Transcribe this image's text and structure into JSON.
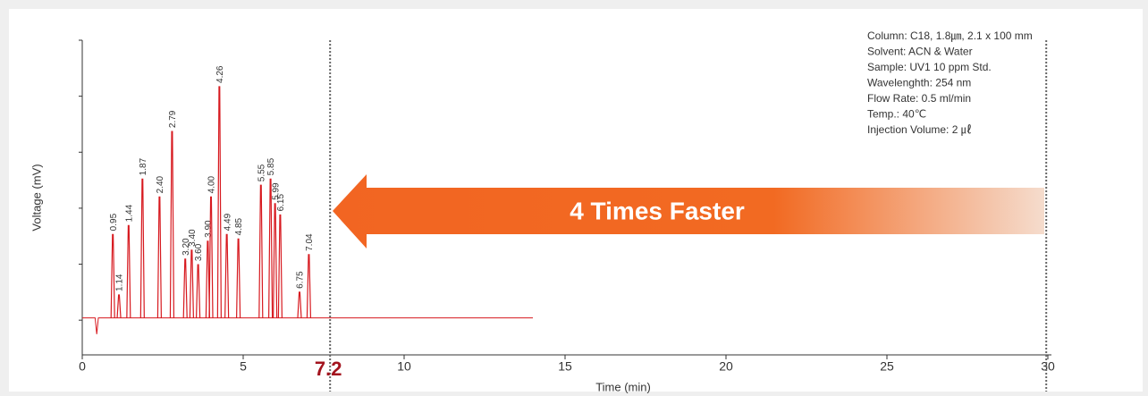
{
  "chart_data": {
    "type": "chromatogram",
    "ylabel": "Voltage (mV)",
    "xlabel": "Time (min)",
    "xlim": [
      0,
      30
    ],
    "xticks": [
      0,
      5,
      10,
      15,
      20,
      25,
      30
    ],
    "ylim": [
      -0.62,
      5
    ],
    "yticks": [
      0,
      1,
      2,
      3,
      4,
      5
    ],
    "color": "#d7191f",
    "peaks": {
      "x": [
        0.95,
        1.14,
        1.44,
        1.87,
        {
          "value": 2.4,
          "label": "2.40"
        },
        2.79,
        {
          "value": 3.2,
          "label": "3.20"
        },
        {
          "value": 3.4,
          "label": "3.40"
        },
        {
          "value": 3.6,
          "label": "3.60"
        },
        {
          "value": 3.9,
          "label": "3.90"
        },
        {
          "value": 4,
          "label": "4.00"
        },
        4.26,
        4.49,
        4.85,
        5.55,
        5.85,
        5.99,
        6.15,
        6.75,
        7.04
      ],
      "values": [
        1.53,
        0.45,
        1.69,
        2.52,
        2.2,
        3.37,
        1.09,
        1.25,
        0.99,
        1.41,
        2.2,
        4.17,
        1.53,
        1.45,
        2.41,
        2.52,
        2.08,
        1.88,
        0.5,
        1.17
      ]
    },
    "baseline": {
      "x": [
        0,
        0.4,
        0.45,
        0.5,
        14
      ],
      "values": [
        0.04,
        0.04,
        -0.25,
        0.04,
        0.04
      ]
    },
    "marker_lines": [
      7.7,
      29.95
    ],
    "fast_run_label": "7.2",
    "arrow_text": "4 Times Faster",
    "notes": [
      "Column: C18, 1.8㎛, 2.1 x 100 mm",
      "Solvent: ACN & Water",
      "Sample: UV1 10 ppm Std.",
      "Wavelenghth: 254 nm",
      "Flow Rate: 0.5 ml/min",
      "Temp.: 40℃",
      "Injection Volume: 2 ㎕"
    ]
  }
}
